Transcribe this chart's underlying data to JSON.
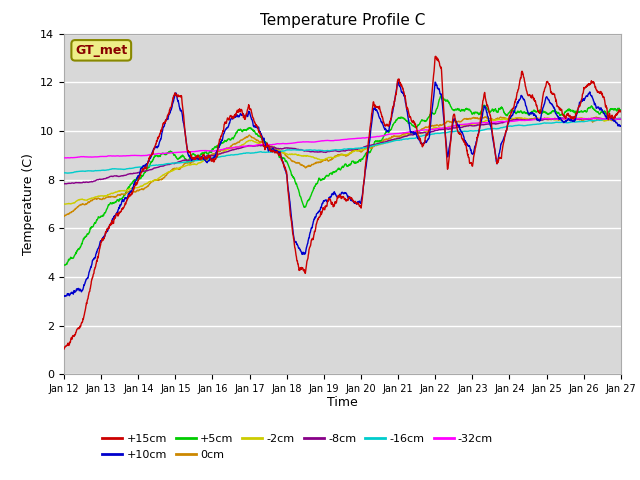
{
  "title": "Temperature Profile C",
  "xlabel": "Time",
  "ylabel": "Temperature (C)",
  "ylim": [
    0,
    14
  ],
  "background_color": "#ffffff",
  "plot_bg_color": "#d8d8d8",
  "series": {
    "+15cm": {
      "color": "#cc0000",
      "lw": 1.0
    },
    "+10cm": {
      "color": "#0000cc",
      "lw": 1.0
    },
    "+5cm": {
      "color": "#00cc00",
      "lw": 1.0
    },
    "0cm": {
      "color": "#cc8800",
      "lw": 1.0
    },
    "-2cm": {
      "color": "#cccc00",
      "lw": 1.0
    },
    "-8cm": {
      "color": "#880088",
      "lw": 1.0
    },
    "-16cm": {
      "color": "#00cccc",
      "lw": 1.0
    },
    "-32cm": {
      "color": "#ff00ff",
      "lw": 1.0
    }
  },
  "xtick_labels": [
    "Jan 12",
    "Jan 13",
    "Jan 14",
    "Jan 15",
    "Jan 16",
    "Jan 17",
    "Jan 18",
    "Jan 19",
    "Jan 20",
    "Jan 21",
    "Jan 22",
    "Jan 23",
    "Jan 24",
    "Jan 25",
    "Jan 26",
    "Jan 27"
  ],
  "ytick_labels": [
    "0",
    "2",
    "4",
    "6",
    "8",
    "10",
    "12",
    "14"
  ],
  "ytick_positions": [
    0,
    2,
    4,
    6,
    8,
    10,
    12,
    14
  ],
  "legend_label": "GT_met",
  "legend_box_color": "#eeee88",
  "legend_text_color": "#880000",
  "legend_border_color": "#888800"
}
